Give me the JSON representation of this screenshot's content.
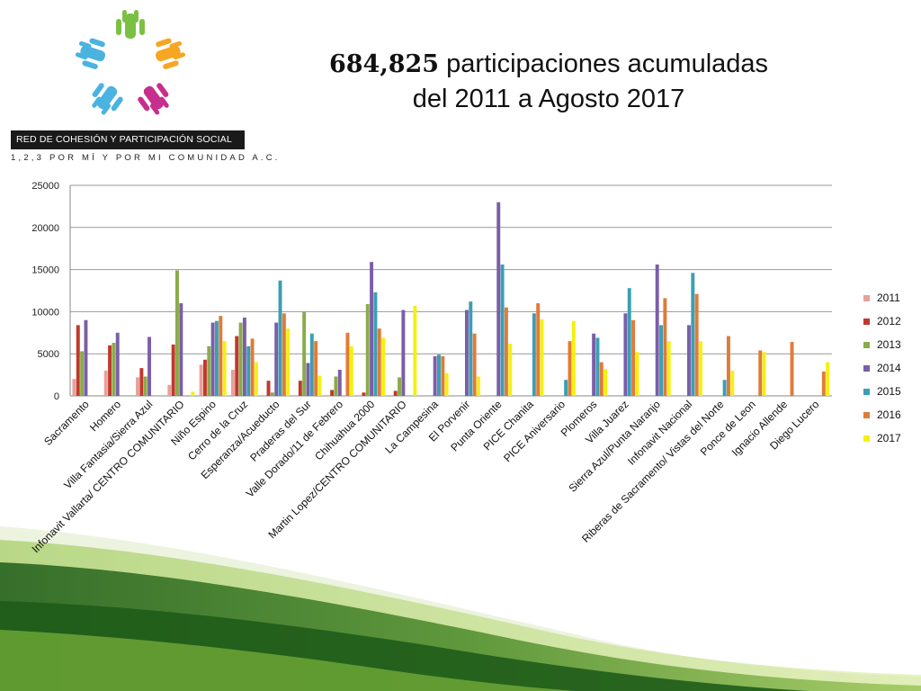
{
  "header": {
    "title_number": "684,825",
    "title_rest": " participaciones acumuladas",
    "title_line2": "del 2011 a Agosto 2017",
    "org_name": "RED DE COHESIÓN Y PARTICIPACIÓN SOCIAL",
    "org_tagline": "1,2,3 POR MÍ Y POR MI COMUNIDAD A.C.",
    "logo_colors": [
      "#7ac143",
      "#f5a623",
      "#c62f8c",
      "#4ab3e0",
      "#9ccb3b"
    ]
  },
  "chart_data": {
    "type": "bar",
    "categories": [
      "Sacramento",
      "Homero",
      "Villa Fantasia/Sierra Azul",
      "Infonavit Vallarta/ CENTRO COMUNITARIO",
      "Niño Espino",
      "Cerro de la Cruz",
      "Esperanza/Acueducto",
      "Praderas del Sur",
      "Valle Dorado/11 de Febrero",
      "Chihuahua 2000",
      "Martin Lopez/CENTRO COMUNITARIO",
      "La Campesina",
      "El Porvenir",
      "Punta Oriente",
      "PICE Chanita",
      "PICE Aniversario",
      "Plomeros",
      "Villa Juarez",
      "Sierra Azul/Punta Naranjo",
      "Infonavit Nacional",
      "Riberas de Sacramento/ Vistas del Norte",
      "Ponce de Leon",
      "Ignacio Allende",
      "Diego Lucero"
    ],
    "series": [
      {
        "name": "2011",
        "color": "#e8a09a",
        "values": [
          2000,
          3000,
          2200,
          1300,
          3700,
          3100,
          0,
          0,
          0,
          0,
          0,
          0,
          0,
          0,
          0,
          0,
          0,
          0,
          0,
          0,
          0,
          0,
          0,
          0
        ]
      },
      {
        "name": "2012",
        "color": "#c0392b",
        "values": [
          8400,
          6000,
          3300,
          6100,
          4300,
          7100,
          1800,
          1800,
          700,
          400,
          600,
          0,
          0,
          0,
          0,
          0,
          0,
          0,
          0,
          0,
          0,
          0,
          0,
          0
        ]
      },
      {
        "name": "2013",
        "color": "#8aab4a",
        "values": [
          5300,
          6300,
          2300,
          14900,
          5900,
          8700,
          400,
          10000,
          2300,
          10900,
          2200,
          0,
          0,
          0,
          0,
          0,
          0,
          0,
          0,
          0,
          0,
          0,
          0,
          0
        ]
      },
      {
        "name": "2014",
        "color": "#7b5ea7",
        "values": [
          9000,
          7500,
          7000,
          11000,
          8700,
          9300,
          8700,
          3900,
          3100,
          15900,
          10200,
          4700,
          10200,
          23000,
          0,
          0,
          7400,
          9800,
          15600,
          8400,
          0,
          0,
          0,
          0
        ]
      },
      {
        "name": "2015",
        "color": "#3a9fb5",
        "values": [
          0,
          0,
          0,
          0,
          8900,
          5900,
          13700,
          7400,
          0,
          12300,
          0,
          4900,
          11200,
          15600,
          9800,
          1900,
          6900,
          12800,
          8400,
          14600,
          1900,
          0,
          0,
          0
        ]
      },
      {
        "name": "2016",
        "color": "#e07b39",
        "values": [
          0,
          0,
          0,
          0,
          9500,
          6800,
          9800,
          6500,
          7500,
          8000,
          0,
          4700,
          7400,
          10500,
          11000,
          6500,
          4000,
          9000,
          11600,
          12100,
          7100,
          5400,
          6400,
          2900
        ]
      },
      {
        "name": "2017",
        "color": "#f5f00f",
        "values": [
          0,
          0,
          0,
          500,
          6500,
          4000,
          8000,
          2400,
          5900,
          6900,
          10700,
          2700,
          2300,
          6200,
          9100,
          8900,
          3200,
          5200,
          6500,
          6500,
          3000,
          5200,
          0,
          4000
        ]
      }
    ],
    "yticks": [
      "25000",
      "20000",
      "15000",
      "10000",
      "5000",
      "0"
    ],
    "ylim": [
      0,
      25000
    ],
    "grid": true,
    "legend": "right"
  }
}
